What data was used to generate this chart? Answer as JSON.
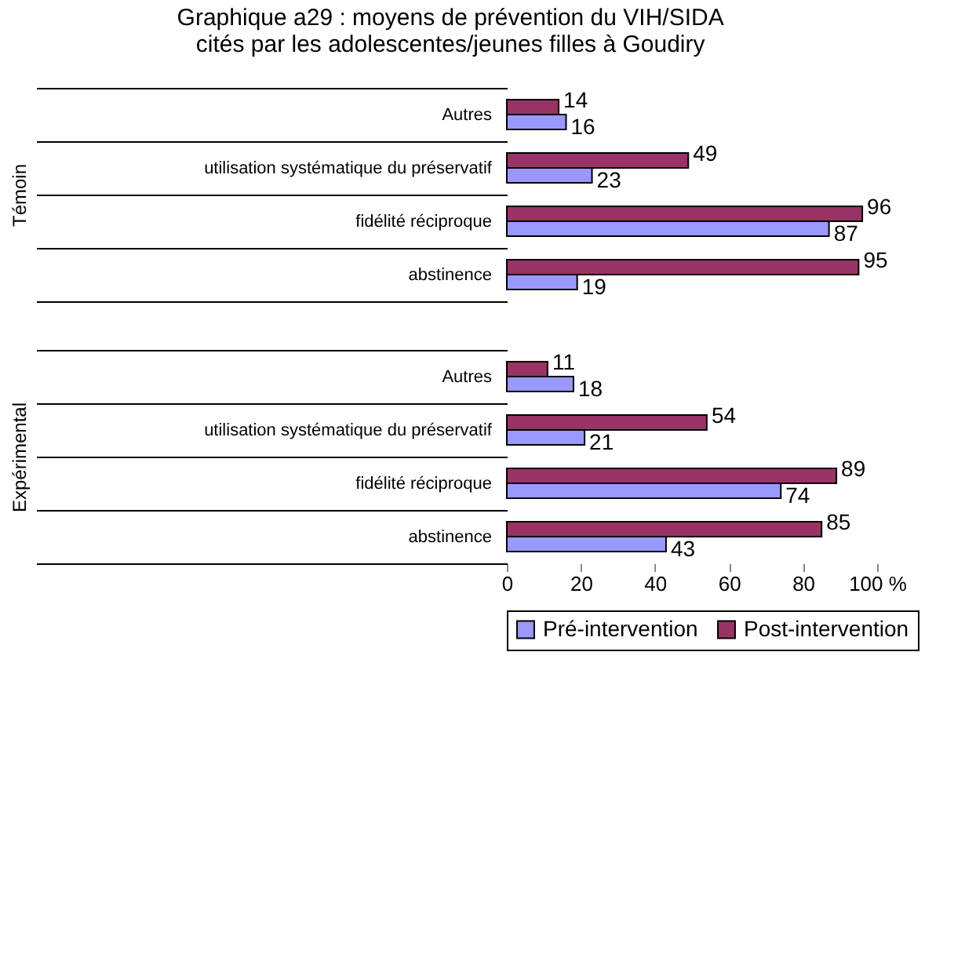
{
  "chart_data": [
    {
      "type": "bar",
      "title": "Graphique a29 : moyens de prévention du VIH/SIDA\ncités par les adolescentes/jeunes filles à Goudiry",
      "orientation": "horizontal",
      "ylabel": "Témoin",
      "categories": [
        "Autres",
        "utilisation systématique du préservatif",
        "fidélité réciproque",
        "abstinence"
      ],
      "series": [
        {
          "color": "#9999ff",
          "values": [
            16,
            23,
            87,
            19
          ]
        },
        {
          "color": "#993366",
          "values": [
            14,
            49,
            96,
            95
          ]
        }
      ],
      "xlim": [
        0,
        100
      ],
      "tick_labels": "y",
      "data_labels": true
    },
    {
      "type": "bar",
      "orientation": "horizontal",
      "ylabel": "Expérimental",
      "categories": [
        "Autres",
        "utilisation systématique du préservatif",
        "fidélité réciproque",
        "abstinence"
      ],
      "series": [
        {
          "name": "Pré-intervention",
          "color": "#9999ff",
          "values": [
            18,
            21,
            74,
            43
          ]
        },
        {
          "name": "Post-intervention",
          "color": "#993366",
          "values": [
            11,
            54,
            89,
            85
          ]
        }
      ],
      "xlim": [
        0,
        100
      ],
      "xticks": [
        0,
        20,
        40,
        60,
        80,
        {
          "value": 100,
          "label": "100 %"
        }
      ],
      "data_labels": true,
      "legend": "bottom"
    }
  ]
}
